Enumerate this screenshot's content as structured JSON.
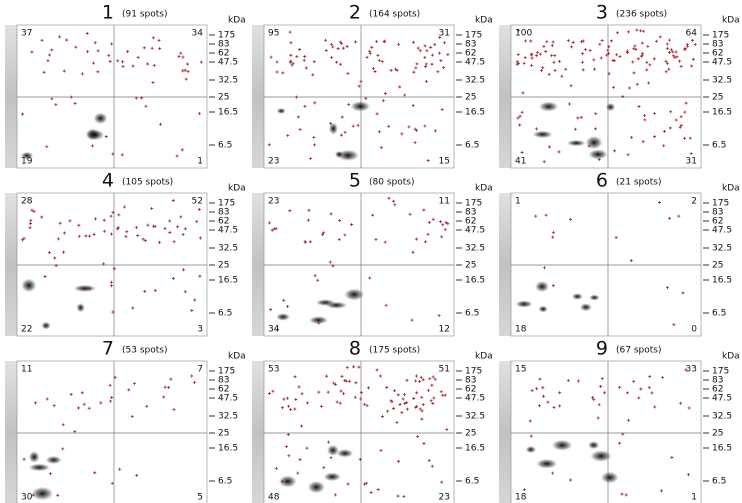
{
  "kda_label": "kDa",
  "kda_ticks": [
    "175",
    "83",
    "62",
    "47.5",
    "32.5",
    "25",
    "16.5",
    "6.5"
  ],
  "panels": [
    {
      "number": "1",
      "spots": "(91 spots)",
      "quadrants": [
        "37",
        "34",
        "19",
        "1"
      ]
    },
    {
      "number": "2",
      "spots": "(164 spots)",
      "quadrants": [
        "95",
        "31",
        "23",
        "15"
      ]
    },
    {
      "number": "3",
      "spots": "(236 spots)",
      "quadrants": [
        "100",
        "64",
        "41",
        "31"
      ]
    },
    {
      "number": "4",
      "spots": "(105 spots)",
      "quadrants": [
        "28",
        "52",
        "22",
        "3"
      ]
    },
    {
      "number": "5",
      "spots": "(80 spots)",
      "quadrants": [
        "23",
        "11",
        "34",
        "12"
      ]
    },
    {
      "number": "6",
      "spots": "(21 spots)",
      "quadrants": [
        "1",
        "2",
        "18",
        "0"
      ]
    },
    {
      "number": "7",
      "spots": "(53 spots)",
      "quadrants": [
        "11",
        "7",
        "30",
        "5"
      ]
    },
    {
      "number": "8",
      "spots": "(175 spots)",
      "quadrants": [
        "53",
        "51",
        "48",
        "23"
      ]
    },
    {
      "number": "9",
      "spots": "(67 spots)",
      "quadrants": [
        "15",
        "33",
        "18",
        "1"
      ]
    }
  ]
}
